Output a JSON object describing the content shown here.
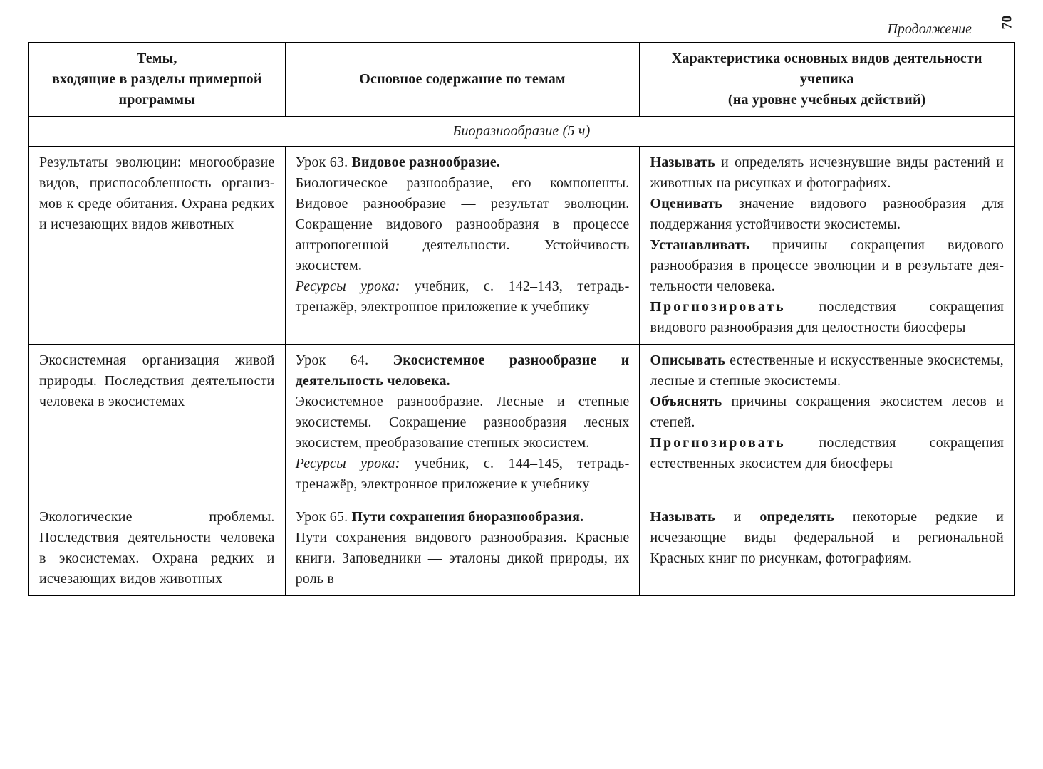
{
  "continuation_label": "Продолжение",
  "page_number": "70",
  "columns": [
    "Темы,\nвходящие в разделы примерной программы",
    "Основное содержание по темам",
    "Характеристика основных видов деятельности ученика\n(на уровне учебных действий)"
  ],
  "section_title": "Биоразнообразие (5 ч)",
  "rows": [
    {
      "c1": "Результаты эволюции: многообразие видов, при­способленность организ­мов к среде обитания. Охрана редких и исчезаю­щих видов животных",
      "c2_lesson": "Урок 63. ",
      "c2_title": "Видовое разнообразие.",
      "c2_body": "Биологическое разнообразие, его компо­ненты. Видовое разнообразие — резуль­тат эволюции. Сокращение видового разнообразия в процессе антропогенной деятельности. Устойчивость экосистем.",
      "c2_res_label": "Ресурсы урока:",
      "c2_res": " учебник, с. 142–143, тетрадь-тренажёр, электронное прило­жение к учебнику",
      "c3_parts": [
        {
          "b": "Называть",
          "t": " и определять исчезнув­шие виды растений и животных на рисунках и фотографиях."
        },
        {
          "b": "Оценивать",
          "t": " значение видового раз­нообразия для поддержания устой­чивости экосистемы."
        },
        {
          "b": "Устанавливать",
          "t": " причины сокраще­ния видового разнообразия в про­цессе эволюции и в результате дея­тельности человека."
        },
        {
          "b": "Прогнозировать",
          "t": " последствия сокращения видового разнообразия для целостности биосферы",
          "sp": true
        }
      ]
    },
    {
      "c1": "Экосистемная организация живой природы. Послед­ствия деятельности чело­века в экосистемах",
      "c2_lesson": "Урок 64. ",
      "c2_title": "Экосистемное разнообразие и деятельность человека.",
      "c2_body": "Экосистемное разнообразие. Лесные и степные экосистемы. Сокращение разно­образия лесных экосистем, преобразова­ние степных экосистем.",
      "c2_res_label": "Ресурсы урока:",
      "c2_res": " учебник, с. 144–145, тетрадь-тренажёр, электронное прило­жение к учебнику",
      "c3_parts": [
        {
          "b": "Описывать",
          "t": " естественные и искус­ственные экосистемы, лесные и степные экосистемы."
        },
        {
          "b": "Объяснять",
          "t": " причины сокращения экосистем лесов и степей."
        },
        {
          "b": "Прогнозировать",
          "t": " последствия сокращения естественных экоси­стем для биосферы",
          "sp": true
        }
      ]
    },
    {
      "c1": "Экологические проблемы. Последствия деятельности человека в экосистемах. Охрана редких и исчезаю­щих видов животных",
      "c2_lesson": "Урок 65. ",
      "c2_title": "Пути сохранения биоразно­образия.",
      "c2_body": "Пути сохранения видового разнообра­зия. Красные книги. Заповедники — эталоны дикой природы, их роль в",
      "c2_res_label": "",
      "c2_res": "",
      "c3_parts": [
        {
          "b": "Называть",
          "t": " и "
        },
        {
          "b": "определять",
          "t": " некото­рые редкие и исчезающие виды федеральной и региональной Красных книг по рисункам, фото­графиям.",
          "inline": true
        }
      ]
    }
  ]
}
